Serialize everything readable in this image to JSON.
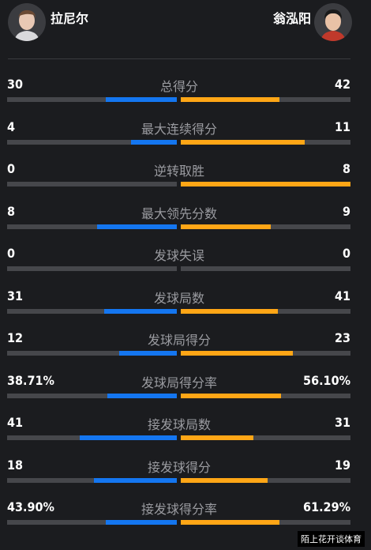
{
  "players": {
    "left": {
      "name": "拉尼尔"
    },
    "right": {
      "name": "翁泓阳"
    }
  },
  "stats": [
    {
      "label": "总得分",
      "left": "30",
      "right": "42",
      "left_frac": 0.42,
      "right_frac": 0.58
    },
    {
      "label": "最大连续得分",
      "left": "4",
      "right": "11",
      "left_frac": 0.27,
      "right_frac": 0.73
    },
    {
      "label": "逆转取胜",
      "left": "0",
      "right": "8",
      "left_frac": 0.0,
      "right_frac": 1.0
    },
    {
      "label": "最大领先分数",
      "left": "8",
      "right": "9",
      "left_frac": 0.47,
      "right_frac": 0.53
    },
    {
      "label": "发球失误",
      "left": "0",
      "right": "0",
      "left_frac": 0.0,
      "right_frac": 0.0
    },
    {
      "label": "发球局数",
      "left": "31",
      "right": "41",
      "left_frac": 0.43,
      "right_frac": 0.57
    },
    {
      "label": "发球局得分",
      "left": "12",
      "right": "23",
      "left_frac": 0.34,
      "right_frac": 0.66
    },
    {
      "label": "发球局得分率",
      "left": "38.71%",
      "right": "56.10%",
      "left_frac": 0.41,
      "right_frac": 0.59
    },
    {
      "label": "接发球局数",
      "left": "41",
      "right": "31",
      "left_frac": 0.57,
      "right_frac": 0.43
    },
    {
      "label": "接发球得分",
      "left": "18",
      "right": "19",
      "left_frac": 0.49,
      "right_frac": 0.51
    },
    {
      "label": "接发球得分率",
      "left": "43.90%",
      "right": "61.29%",
      "left_frac": 0.42,
      "right_frac": 0.58
    }
  ],
  "watermark": "陌上花开谈体育",
  "colors": {
    "left_bar": "#1476f0",
    "right_bar": "#ffa616",
    "track": "#46474b",
    "background": "#1b1c1f"
  }
}
